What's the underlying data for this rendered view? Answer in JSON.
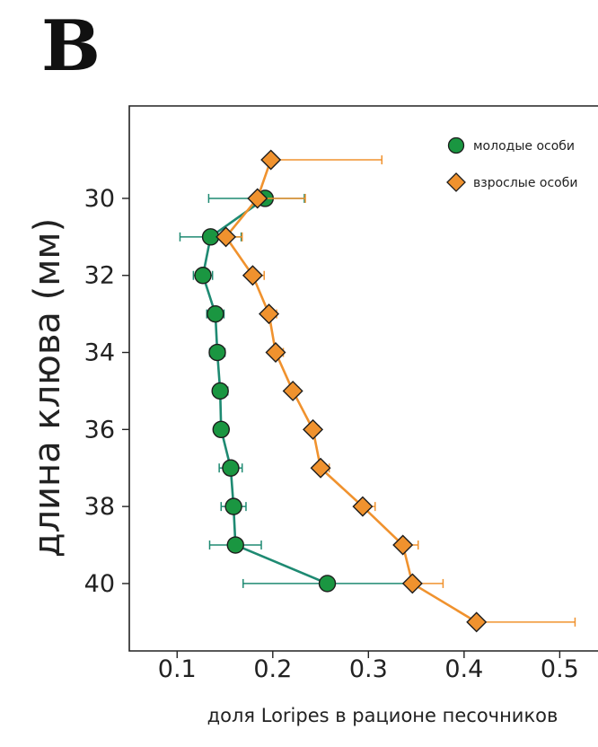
{
  "panel_label": "B",
  "chart_data": {
    "type": "line",
    "orientation": "vertical-profile",
    "title": "",
    "xlabel": "доля Loripes в рационе песочников",
    "ylabel": "длина клюва (мм)",
    "xlim": [
      0.05,
      0.54
    ],
    "ylim": [
      41.75,
      27.6
    ],
    "x_ticks": [
      0.1,
      0.2,
      0.3,
      0.4,
      0.5
    ],
    "x_tick_labels": [
      "0.1",
      "0.2",
      "0.3",
      "0.4",
      "0.5"
    ],
    "y_ticks": [
      30,
      32,
      34,
      36,
      38,
      40
    ],
    "y_tick_labels": [
      "30",
      "32",
      "34",
      "36",
      "38",
      "40"
    ],
    "grid": false,
    "legend_position": "top-right",
    "series": [
      {
        "name": "молодые особи",
        "color": "#1a9641",
        "line_color": "#1e8a72",
        "marker": "circle",
        "y": [
          30,
          31,
          32,
          33,
          34,
          35,
          36,
          37,
          38,
          39,
          40
        ],
        "x": [
          0.192,
          0.135,
          0.127,
          0.14,
          0.142,
          0.145,
          0.146,
          0.156,
          0.159,
          0.161,
          0.257
        ],
        "x_err_low": [
          0.133,
          0.103,
          0.117,
          0.131,
          0.134,
          0.138,
          0.139,
          0.144,
          0.146,
          0.134,
          0.169
        ],
        "x_err_high": [
          0.233,
          0.167,
          0.137,
          0.149,
          0.15,
          0.153,
          0.153,
          0.168,
          0.172,
          0.188,
          0.345
        ]
      },
      {
        "name": "взрослые особи",
        "color": "#f0922e",
        "line_color": "#f0922e",
        "marker": "diamond",
        "y": [
          29,
          30,
          31,
          32,
          33,
          34,
          35,
          36,
          37,
          38,
          39,
          40,
          41
        ],
        "x": [
          0.198,
          0.184,
          0.151,
          0.179,
          0.196,
          0.203,
          0.221,
          0.242,
          0.25,
          0.294,
          0.336,
          0.346,
          0.413
        ],
        "x_err_low": [
          0.198,
          0.184,
          0.151,
          0.179,
          0.196,
          0.203,
          0.221,
          0.242,
          0.25,
          0.294,
          0.336,
          0.346,
          0.413
        ],
        "x_err_high": [
          0.314,
          0.234,
          0.168,
          0.191,
          0.204,
          0.211,
          0.227,
          0.248,
          0.259,
          0.307,
          0.352,
          0.378,
          0.516
        ]
      }
    ]
  }
}
